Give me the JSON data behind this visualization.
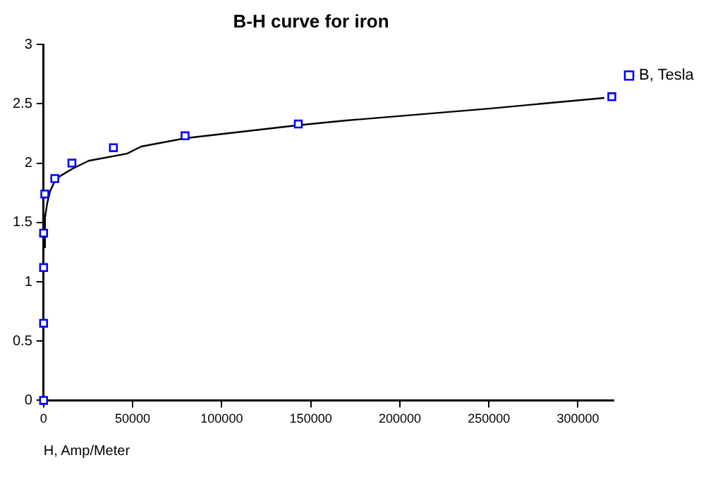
{
  "chart_data": {
    "type": "scatter",
    "title": "B-H curve for iron",
    "xlabel": "H, Amp/Meter",
    "xlim": [
      0,
      320000
    ],
    "xticks": [
      0,
      50000,
      100000,
      150000,
      200000,
      250000,
      300000
    ],
    "ylim": [
      0,
      3
    ],
    "yticks": [
      0,
      0.5,
      1,
      1.5,
      2,
      2.5,
      3
    ],
    "grid": false,
    "legend": "top right",
    "series": [
      {
        "name": "B, Tesla",
        "marker": "square",
        "color": "#0000ff",
        "x": [
          0,
          0,
          0,
          0,
          700,
          6300,
          15900,
          39200,
          79400,
          143000,
          319000
        ],
        "values": [
          0,
          0.65,
          1.12,
          1.41,
          1.74,
          1.87,
          2.0,
          2.13,
          2.23,
          2.33,
          2.56
        ]
      },
      {
        "type": "line",
        "marker": "none",
        "color": "#000000",
        "x": [
          150,
          800,
          2000,
          3600,
          6000,
          9200,
          15900,
          25300,
          46800,
          54800,
          79400,
          143000,
          170000,
          250400,
          314800
        ],
        "values": [
          1.29,
          1.54,
          1.66,
          1.76,
          1.84,
          1.89,
          1.95,
          2.02,
          2.08,
          2.14,
          2.21,
          2.32,
          2.36,
          2.46,
          2.55
        ]
      }
    ]
  }
}
